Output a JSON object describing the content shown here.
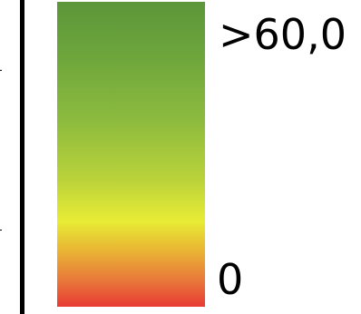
{
  "legend": {
    "max_label": ">60,0",
    "min_label": "0",
    "gradient_colors": [
      "#5b963a",
      "#8bba3e",
      "#e8ec35",
      "#e9b234",
      "#e83a33"
    ]
  }
}
